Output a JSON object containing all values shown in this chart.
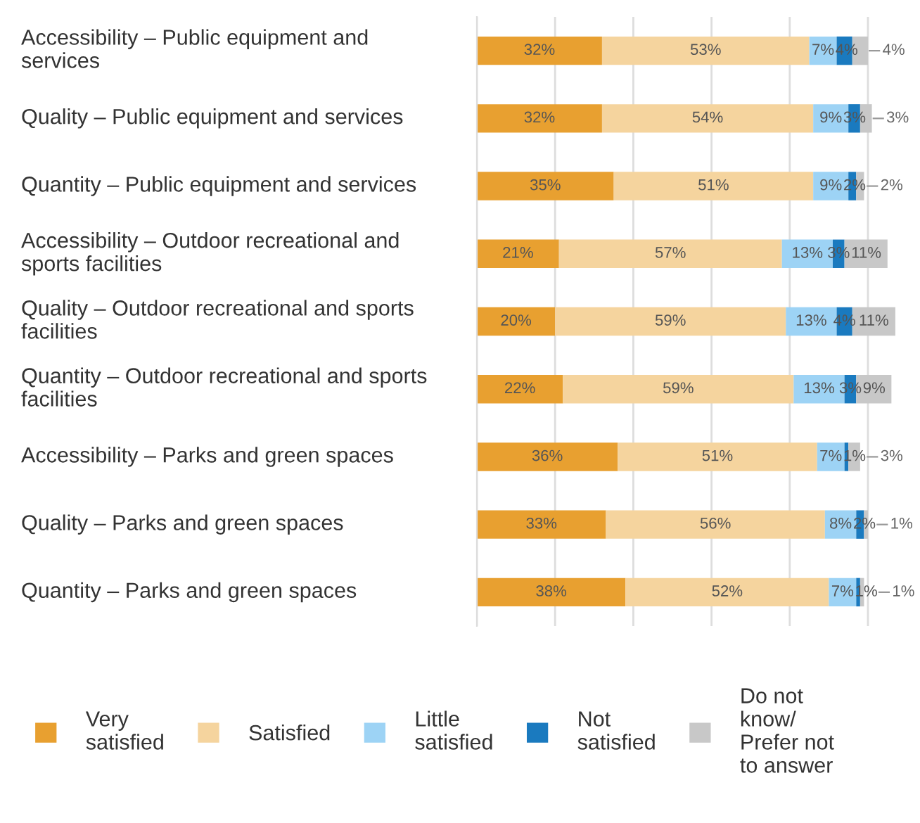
{
  "chart_data": {
    "type": "bar",
    "orientation": "horizontal",
    "stacked": true,
    "grid": "x",
    "legend": "bottom",
    "categories": [
      "Accessibility – Public equipment and services",
      "Quality – Public equipment and services",
      "Quantity – Public equipment and services",
      "Accessibility – Outdoor recreational and sports facilities",
      "Quality – Outdoor recreational and sports facilities",
      "Quantity – Outdoor recreational and sports facilities",
      "Accessibility – Parks and green spaces",
      "Quality – Parks and green spaces",
      "Quantity – Parks and green spaces"
    ],
    "series": [
      {
        "name": "Very satisfied",
        "color": "#e8a030",
        "values": [
          32,
          32,
          35,
          21,
          20,
          22,
          36,
          33,
          38
        ],
        "value_labels": [
          "32%",
          "32%",
          "35%",
          "21%",
          "20%",
          "22%",
          "36%",
          "33%",
          "38%"
        ]
      },
      {
        "name": "Satisfied",
        "color": "#f5d49e",
        "values": [
          53,
          54,
          51,
          57,
          59,
          59,
          51,
          56,
          52
        ],
        "value_labels": [
          "53%",
          "54%",
          "51%",
          "57%",
          "59%",
          "59%",
          "51%",
          "56%",
          "52%"
        ]
      },
      {
        "name": "Little satisfied",
        "color": "#9dd3f5",
        "values": [
          7,
          9,
          9,
          13,
          13,
          13,
          7,
          8,
          7
        ],
        "value_labels": [
          "7%",
          "9%",
          "9%",
          "13%",
          "13%",
          "13%",
          "7%",
          "8%",
          "7%"
        ]
      },
      {
        "name": "Not satisfied",
        "color": "#1a7abf",
        "values": [
          4,
          3,
          2,
          3,
          4,
          3,
          1,
          2,
          1
        ],
        "value_labels": [
          "4%",
          "3%",
          "2%",
          "3%",
          "4%",
          "3%",
          "1%",
          "2%",
          "1%"
        ]
      },
      {
        "name": "Do not know/ Prefer not to answer",
        "color": "#c8c8c8",
        "values": [
          4,
          3,
          2,
          11,
          11,
          9,
          3,
          1,
          1
        ],
        "value_labels": [
          "4%",
          "3%",
          "2%",
          "11%",
          "11%",
          "9%",
          "3%",
          "1%",
          "1%"
        ]
      }
    ]
  }
}
